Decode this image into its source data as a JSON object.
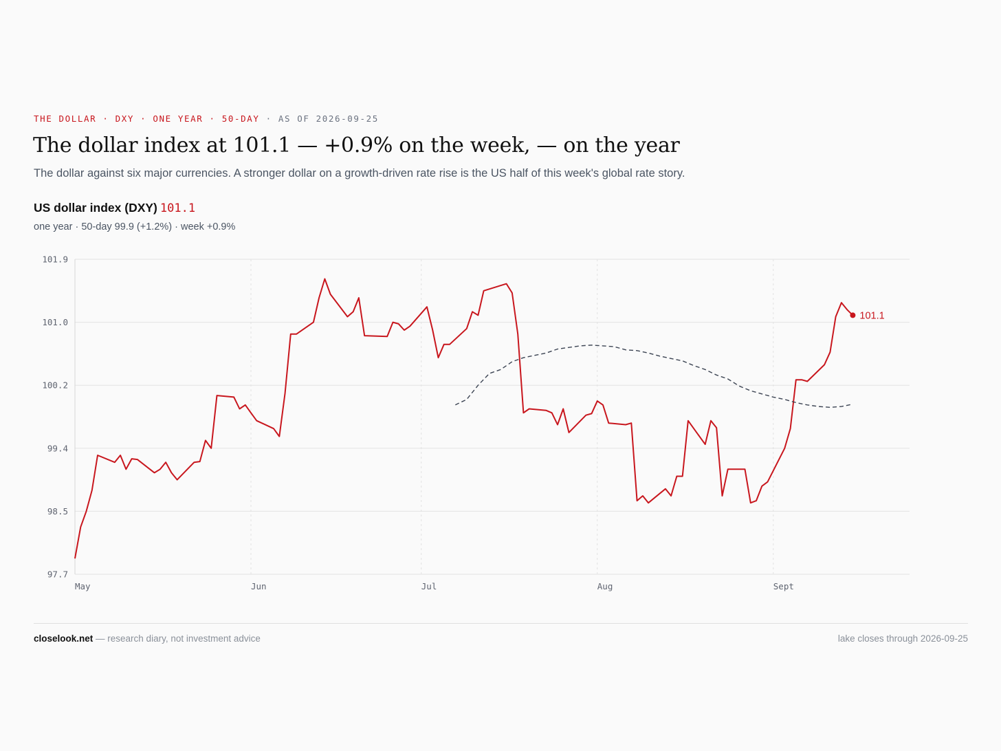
{
  "header": {
    "kicker_red": "THE DOLLAR · DXY · ONE YEAR · 50-DAY",
    "kicker_sep": " · ",
    "kicker_grey": "AS OF 2026-09-25",
    "title": "The dollar index at 101.1 — +0.9% on the week, — on the year",
    "subtitle": "The dollar against six major currencies. A stronger dollar on a growth-driven rate rise is the US half of this week's global rate story."
  },
  "series_header": {
    "name": "US dollar index (DXY)",
    "value": "101.1",
    "detail": "one year · 50-day 99.9 (+1.2%) · week +0.9%"
  },
  "colors": {
    "price": "#c8161d",
    "ma": "#3b4352",
    "grid": "#e3e3e3",
    "axis_text": "#5f6470"
  },
  "chart_data": {
    "type": "line",
    "title": "US dollar index (DXY)",
    "y_ticks": [
      "101.9",
      "101.0",
      "100.2",
      "99.4",
      "98.5",
      "97.7"
    ],
    "ylim": [
      97.7,
      101.9
    ],
    "x_ticks": [
      {
        "label": "May",
        "day": 0
      },
      {
        "label": "Jun",
        "day": 31
      },
      {
        "label": "Jul",
        "day": 61
      },
      {
        "label": "Aug",
        "day": 92
      },
      {
        "label": "Sept",
        "day": 123
      }
    ],
    "x_domain": [
      0,
      147
    ],
    "end_label": "101.1",
    "grid": true,
    "series": [
      {
        "name": "US dollar index (DXY)",
        "style": "solid",
        "points": [
          [
            0,
            97.9
          ],
          [
            1,
            98.3
          ],
          [
            2,
            98.5
          ],
          [
            3,
            98.8
          ],
          [
            4,
            99.3
          ],
          [
            7,
            99.2
          ],
          [
            8,
            99.3
          ],
          [
            9,
            99.1
          ],
          [
            10,
            99.25
          ],
          [
            11,
            99.24
          ],
          [
            14,
            99.05
          ],
          [
            15,
            99.1
          ],
          [
            16,
            99.2
          ],
          [
            17,
            99.05
          ],
          [
            18,
            98.95
          ],
          [
            21,
            99.2
          ],
          [
            22,
            99.21
          ],
          [
            23,
            99.5
          ],
          [
            24,
            99.4
          ],
          [
            25,
            100.07
          ],
          [
            28,
            100.05
          ],
          [
            29,
            99.9
          ],
          [
            30,
            99.95
          ],
          [
            31,
            99.85
          ],
          [
            32,
            99.75
          ],
          [
            35,
            99.65
          ],
          [
            36,
            99.55
          ],
          [
            37,
            100.1
          ],
          [
            38,
            100.85
          ],
          [
            39,
            100.85
          ],
          [
            42,
            101.0
          ],
          [
            43,
            101.35
          ],
          [
            44,
            101.62
          ],
          [
            45,
            101.4
          ],
          [
            48,
            101.08
          ],
          [
            49,
            101.15
          ],
          [
            50,
            101.35
          ],
          [
            51,
            100.83
          ],
          [
            55,
            100.82
          ],
          [
            56,
            101.0
          ],
          [
            57,
            100.98
          ],
          [
            58,
            100.9
          ],
          [
            59,
            100.95
          ],
          [
            62,
            101.22
          ],
          [
            63,
            100.9
          ],
          [
            64,
            100.55
          ],
          [
            65,
            100.72
          ],
          [
            66,
            100.72
          ],
          [
            69,
            100.92
          ],
          [
            70,
            101.15
          ],
          [
            71,
            101.1
          ],
          [
            72,
            101.45
          ],
          [
            76,
            101.55
          ],
          [
            77,
            101.42
          ],
          [
            78,
            100.85
          ],
          [
            79,
            99.85
          ],
          [
            80,
            99.9
          ],
          [
            83,
            99.88
          ],
          [
            84,
            99.85
          ],
          [
            85,
            99.7
          ],
          [
            86,
            99.9
          ],
          [
            87,
            99.6
          ],
          [
            90,
            99.82
          ],
          [
            91,
            99.84
          ],
          [
            92,
            100.0
          ],
          [
            93,
            99.95
          ],
          [
            94,
            99.72
          ],
          [
            97,
            99.7
          ],
          [
            98,
            99.72
          ],
          [
            99,
            98.65
          ],
          [
            100,
            98.72
          ],
          [
            101,
            98.62
          ],
          [
            104,
            98.82
          ],
          [
            105,
            98.72
          ],
          [
            106,
            99.0
          ],
          [
            107,
            99.0
          ],
          [
            108,
            99.75
          ],
          [
            111,
            99.45
          ],
          [
            112,
            99.75
          ],
          [
            113,
            99.66
          ],
          [
            114,
            98.72
          ],
          [
            115,
            99.1
          ],
          [
            118,
            99.1
          ],
          [
            119,
            98.62
          ],
          [
            120,
            98.65
          ],
          [
            121,
            98.86
          ],
          [
            122,
            98.92
          ],
          [
            125,
            99.4
          ],
          [
            126,
            99.65
          ],
          [
            127,
            100.27
          ],
          [
            128,
            100.27
          ],
          [
            129,
            100.25
          ],
          [
            132,
            100.46
          ],
          [
            133,
            100.62
          ],
          [
            134,
            101.08
          ],
          [
            135,
            101.28
          ],
          [
            136,
            101.18
          ],
          [
            137,
            101.1
          ]
        ]
      },
      {
        "name": "50-day",
        "style": "dashed",
        "points": [
          [
            67,
            99.95
          ],
          [
            69,
            100.02
          ],
          [
            71,
            100.2
          ],
          [
            73,
            100.35
          ],
          [
            75,
            100.4
          ],
          [
            77,
            100.5
          ],
          [
            79,
            100.55
          ],
          [
            81,
            100.58
          ],
          [
            83,
            100.61
          ],
          [
            85,
            100.66
          ],
          [
            87,
            100.68
          ],
          [
            89,
            100.7
          ],
          [
            91,
            100.71
          ],
          [
            93,
            100.7
          ],
          [
            95,
            100.69
          ],
          [
            97,
            100.65
          ],
          [
            99,
            100.64
          ],
          [
            101,
            100.61
          ],
          [
            103,
            100.57
          ],
          [
            105,
            100.54
          ],
          [
            107,
            100.51
          ],
          [
            109,
            100.45
          ],
          [
            111,
            100.4
          ],
          [
            113,
            100.33
          ],
          [
            115,
            100.28
          ],
          [
            117,
            100.19
          ],
          [
            119,
            100.13
          ],
          [
            121,
            100.09
          ],
          [
            123,
            100.05
          ],
          [
            125,
            100.02
          ],
          [
            127,
            99.98
          ],
          [
            129,
            99.95
          ],
          [
            131,
            99.93
          ],
          [
            133,
            99.92
          ],
          [
            135,
            99.93
          ],
          [
            137,
            99.96
          ]
        ]
      }
    ]
  },
  "footer": {
    "brand": "closelook.net",
    "note": " — research diary, not investment advice",
    "right": "lake closes through 2026-09-25"
  }
}
